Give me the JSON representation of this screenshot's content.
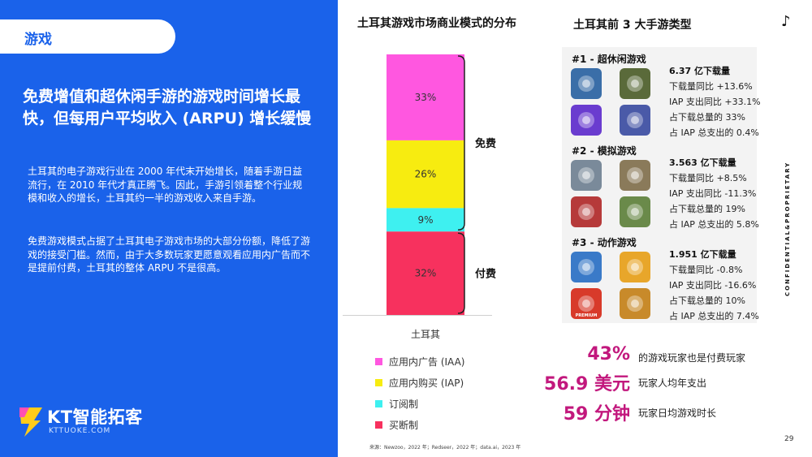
{
  "section_tab": "游戏",
  "headline": "免费增值和超休闲手游的游戏时间增长最快，但每用户平均收入 (ARPU) 增长缓慢",
  "paragraphs": [
    "土耳其的电子游戏行业在 2000 年代末开始增长，随着手游日益流行，在 2010 年代才真正腾飞。因此，手游引领着整个行业规模和收入的增长，土耳其约一半的游戏收入来自手游。",
    "免费游戏模式占据了土耳其电子游戏市场的大部分份额，降低了游戏的接受门槛。然而，由于大多数玩家更愿意观看应用内广告而不是提前付费，土耳其的整体 ARPU 不是很高。"
  ],
  "logo": {
    "brand": "KT智能拓客",
    "sub": "KTTUOKE.COM"
  },
  "chart_data": {
    "type": "bar",
    "title": "土耳其游戏市场商业模式的分布",
    "categories": [
      "土耳其"
    ],
    "stacked": true,
    "series": [
      {
        "name": "应用内广告 (IAA)",
        "value": 33,
        "label": "33%",
        "color": "#ff57e0"
      },
      {
        "name": "应用内购买 (IAP)",
        "value": 26,
        "label": "26%",
        "color": "#f7ec10"
      },
      {
        "name": "订阅制",
        "value": 9,
        "label": "9%",
        "color": "#3ef0f0"
      },
      {
        "name": "买断制",
        "value": 32,
        "label": "32%",
        "color": "#f7315e"
      }
    ],
    "brackets": [
      {
        "label": "免费",
        "series": [
          0,
          1,
          2
        ]
      },
      {
        "label": "付费",
        "series": [
          3
        ]
      }
    ],
    "legend_position": "bottom"
  },
  "top3": {
    "title": "土耳其前 3 大手游类型",
    "categories": [
      {
        "name": "#1 - 超休闲游戏",
        "downloads": "6.37 亿下载量",
        "stats": [
          "下载量同比 +13.6%",
          "IAP 支出同比 +33.1%",
          "占下载总量的 33%",
          "占 IAP 总支出的 0.4%"
        ],
        "thumbs": [
          {
            "icon": "car-game-icon",
            "bg": "#3a6ea8"
          },
          {
            "icon": "ball-track-game-icon",
            "bg": "#5a6a3a"
          },
          {
            "icon": "snake-game-icon",
            "bg": "#6a3ccf"
          },
          {
            "icon": "tiles-game-icon",
            "bg": "#4a5aa8"
          }
        ]
      },
      {
        "name": "#2 - 模拟游戏",
        "downloads": "3.563 亿下载量",
        "stats": [
          "下载量同比 +8.5%",
          "IAP 支出同比 -11.3%",
          "占下载总量的 19%",
          "占 IAP 总支出的 5.8%"
        ],
        "thumbs": [
          {
            "icon": "city-sim-game-icon",
            "bg": "#7a8a9a"
          },
          {
            "icon": "talking-tom-game-icon",
            "bg": "#8a7a5a"
          },
          {
            "icon": "holiday-friends-game-icon",
            "bg": "#b63a3a"
          },
          {
            "icon": "block-building-game-icon",
            "bg": "#6a8a4a"
          }
        ]
      },
      {
        "name": "#3 - 动作游戏",
        "downloads": "1.951 亿下载量",
        "stats": [
          "下载量同比 -0.8%",
          "IAP 支出同比 -16.6%",
          "占下载总量的 10%",
          "占 IAP 总支出的 7.4%"
        ],
        "thumbs": [
          {
            "icon": "subway-runner-game-icon",
            "bg": "#3a7ac8"
          },
          {
            "icon": "brawl-game-icon",
            "bg": "#e8a62a"
          },
          {
            "icon": "red-ball-game-icon",
            "bg": "#d83a2a",
            "caption": "PREMIUM"
          },
          {
            "icon": "gold-run-game-icon",
            "bg": "#c88a2a"
          }
        ]
      }
    ]
  },
  "highlights": [
    {
      "number": "43%",
      "label": "的游戏玩家也是付费玩家"
    },
    {
      "number": "56.9 美元",
      "label": "玩家人均年支出"
    },
    {
      "number": "59 分钟",
      "label": "玩家日均游戏时长"
    }
  ],
  "side_label": "CONFIDENTIAL&PROPRIETARY",
  "page_number": "29",
  "source": "来源：Newzoo，2022 年；Redseer，2022 年；data.ai，2023 年",
  "tiktok_glyph": "♪"
}
